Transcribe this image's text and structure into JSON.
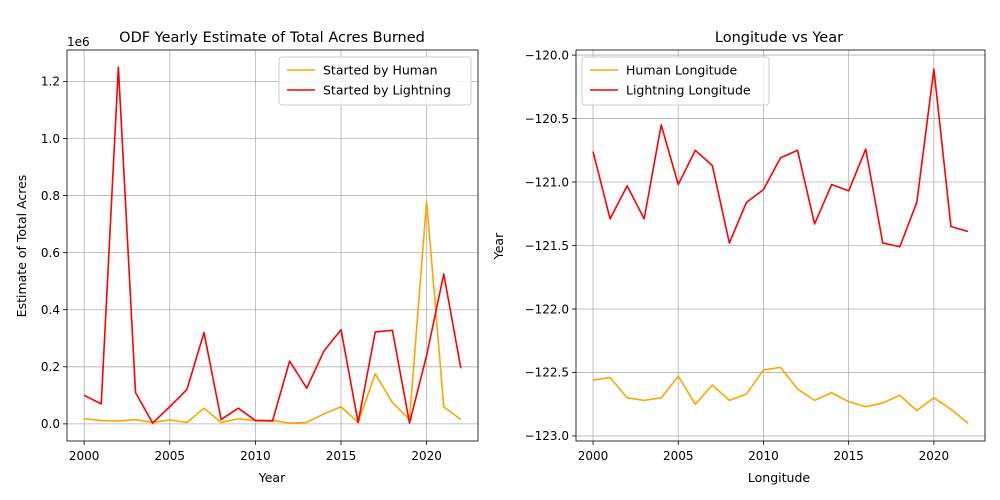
{
  "chart_data": [
    {
      "type": "line",
      "title": "ODF Yearly Estimate of Total Acres Burned",
      "xlabel": "Year",
      "ylabel": "Estimate of Total Acres",
      "offset_label": "1e6",
      "xlim": [
        1999,
        2023
      ],
      "ylim": [
        -60000,
        1310000
      ],
      "xticks": [
        2000,
        2005,
        2010,
        2015,
        2020
      ],
      "xtick_labels": [
        "2000",
        "2005",
        "2010",
        "2015",
        "2020"
      ],
      "yticks": [
        0,
        200000,
        400000,
        600000,
        800000,
        1000000,
        1200000
      ],
      "ytick_labels": [
        "0.0",
        "0.2",
        "0.4",
        "0.6",
        "0.8",
        "1.0",
        "1.2"
      ],
      "grid": true,
      "legend_position": "top-right",
      "x": [
        2000,
        2001,
        2002,
        2003,
        2004,
        2005,
        2006,
        2007,
        2008,
        2009,
        2010,
        2011,
        2012,
        2013,
        2014,
        2015,
        2016,
        2017,
        2018,
        2019,
        2020,
        2021,
        2022
      ],
      "series": [
        {
          "name": "Started by Human",
          "color": "#ffa500",
          "values": [
            18000,
            12000,
            10000,
            15000,
            5000,
            14000,
            5000,
            55000,
            5000,
            18000,
            12000,
            12000,
            3000,
            5000,
            35000,
            60000,
            5000,
            175000,
            75000,
            15000,
            780000,
            60000,
            15000
          ]
        },
        {
          "name": "Started by Lightning",
          "color": "#ff0000",
          "values": [
            100000,
            70000,
            1250000,
            110000,
            3000,
            60000,
            120000,
            320000,
            15000,
            55000,
            12000,
            10000,
            220000,
            125000,
            255000,
            330000,
            5000,
            322000,
            328000,
            3000,
            240000,
            525000,
            195000
          ]
        }
      ]
    },
    {
      "type": "line",
      "title": "Longitude vs Year",
      "xlabel": "Longitude",
      "ylabel": "Year",
      "xlim": [
        1999,
        2023
      ],
      "ylim": [
        -123.04,
        -119.96
      ],
      "xticks": [
        2000,
        2005,
        2010,
        2015,
        2020
      ],
      "xtick_labels": [
        "2000",
        "2005",
        "2010",
        "2015",
        "2020"
      ],
      "yticks": [
        -123.0,
        -122.5,
        -122.0,
        -121.5,
        -121.0,
        -120.5,
        -120.0
      ],
      "ytick_labels": [
        "−123.0",
        "−122.5",
        "−122.0",
        "−121.5",
        "−121.0",
        "−120.5",
        "−120.0"
      ],
      "grid": true,
      "legend_position": "top-left",
      "x": [
        2000,
        2001,
        2002,
        2003,
        2004,
        2005,
        2006,
        2007,
        2008,
        2009,
        2010,
        2011,
        2012,
        2013,
        2014,
        2015,
        2016,
        2017,
        2018,
        2019,
        2020,
        2021,
        2022
      ],
      "series": [
        {
          "name": "Human Longitude",
          "color": "#ffa500",
          "values": [
            -122.56,
            -122.54,
            -122.7,
            -122.72,
            -122.7,
            -122.53,
            -122.75,
            -122.6,
            -122.72,
            -122.67,
            -122.48,
            -122.46,
            -122.63,
            -122.72,
            -122.66,
            -122.73,
            -122.77,
            -122.74,
            -122.68,
            -122.8,
            -122.7,
            -122.79,
            -122.9
          ]
        },
        {
          "name": "Lightning Longitude",
          "color": "#ff0000",
          "values": [
            -120.76,
            -121.29,
            -121.03,
            -121.29,
            -120.55,
            -121.02,
            -120.75,
            -120.87,
            -121.48,
            -121.16,
            -121.06,
            -120.81,
            -120.75,
            -121.33,
            -121.02,
            -121.07,
            -120.74,
            -121.48,
            -121.51,
            -121.16,
            -120.11,
            -121.35,
            -121.39
          ]
        }
      ]
    }
  ]
}
